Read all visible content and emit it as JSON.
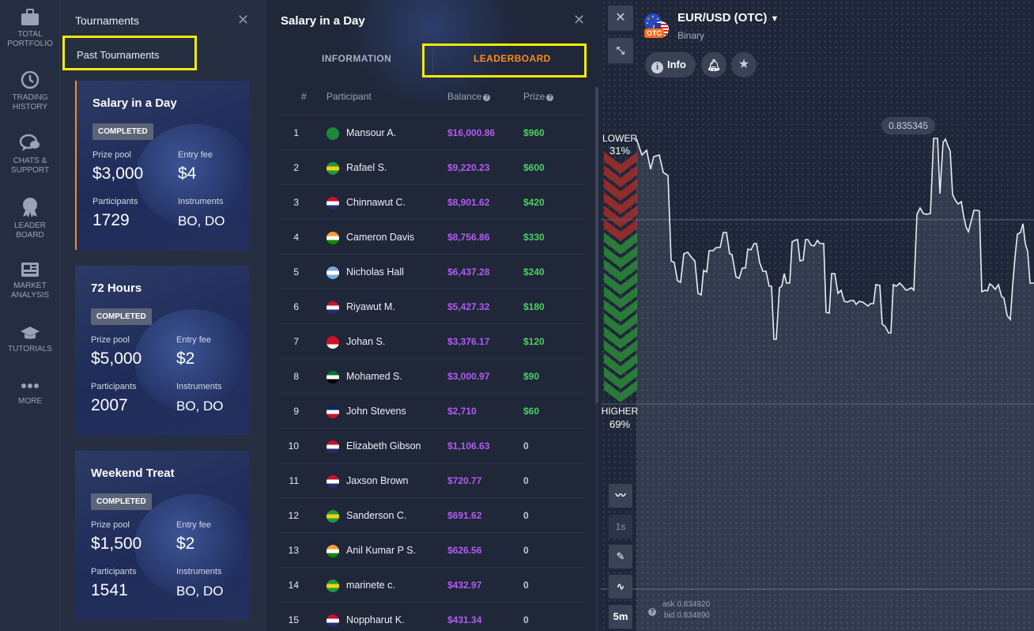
{
  "nav": {
    "items": [
      {
        "label": "TOTAL\nPORTFOLIO",
        "icon": "briefcase-icon"
      },
      {
        "label": "TRADING\nHISTORY",
        "icon": "history-icon"
      },
      {
        "label": "CHATS &\nSUPPORT",
        "icon": "chat-icon"
      },
      {
        "label": "LEADER\nBOARD",
        "icon": "award-icon"
      },
      {
        "label": "MARKET\nANALYSIS",
        "icon": "newspaper-icon"
      },
      {
        "label": "TUTORIALS",
        "icon": "graduation-cap-icon"
      },
      {
        "label": "MORE",
        "icon": "more-dots-icon"
      }
    ]
  },
  "tournaments": {
    "title": "Tournaments",
    "past_label": "Past Tournaments",
    "cards": [
      {
        "title": "Salary in a Day",
        "status": "COMPLETED",
        "prize_label": "Prize pool",
        "prize": "$3,000",
        "fee_label": "Entry fee",
        "fee": "$4",
        "participants_label": "Participants",
        "participants": "1729",
        "instruments_label": "Instruments",
        "instruments": "BO, DO"
      },
      {
        "title": "72 Hours",
        "status": "COMPLETED",
        "prize_label": "Prize pool",
        "prize": "$5,000",
        "fee_label": "Entry fee",
        "fee": "$2",
        "participants_label": "Participants",
        "participants": "2007",
        "instruments_label": "Instruments",
        "instruments": "BO, DO"
      },
      {
        "title": "Weekend Treat",
        "status": "COMPLETED",
        "prize_label": "Prize pool",
        "prize": "$1,500",
        "fee_label": "Entry fee",
        "fee": "$2",
        "participants_label": "Participants",
        "participants": "1541",
        "instruments_label": "Instruments",
        "instruments": "BO, DO"
      }
    ]
  },
  "leaderboard": {
    "title": "Salary in a Day",
    "tabs": {
      "info": "INFORMATION",
      "leaderboard": "LEADERBOARD"
    },
    "headers": {
      "rank": "#",
      "participant": "Participant",
      "balance": "Balance",
      "prize": "Prize"
    },
    "rows": [
      {
        "rank": "1",
        "name": "Mansour A.",
        "balance": "$16,000.86",
        "prize": "$960",
        "flag": "sa"
      },
      {
        "rank": "2",
        "name": "Rafael S.",
        "balance": "$9,220.23",
        "prize": "$600",
        "flag": "br"
      },
      {
        "rank": "3",
        "name": "Chinnawut C.",
        "balance": "$8,901.62",
        "prize": "$420",
        "flag": "th"
      },
      {
        "rank": "4",
        "name": "Cameron Davis",
        "balance": "$8,756.86",
        "prize": "$330",
        "flag": "in"
      },
      {
        "rank": "5",
        "name": "Nicholas Hall",
        "balance": "$6,437.28",
        "prize": "$240",
        "flag": "ar"
      },
      {
        "rank": "6",
        "name": "Riyawut M.",
        "balance": "$5,427.32",
        "prize": "$180",
        "flag": "th"
      },
      {
        "rank": "7",
        "name": "Johan S.",
        "balance": "$3,376.17",
        "prize": "$120",
        "flag": "id"
      },
      {
        "rank": "8",
        "name": "Mohamed S.",
        "balance": "$3,000.97",
        "prize": "$90",
        "flag": "ae"
      },
      {
        "rank": "9",
        "name": "John Stevens",
        "balance": "$2,710",
        "prize": "$60",
        "flag": "do"
      },
      {
        "rank": "10",
        "name": "Elizabeth Gibson",
        "balance": "$1,106.63",
        "prize": "0",
        "flag": "th"
      },
      {
        "rank": "11",
        "name": "Jaxson Brown",
        "balance": "$720.77",
        "prize": "0",
        "flag": "th"
      },
      {
        "rank": "12",
        "name": "Sanderson C.",
        "balance": "$691.62",
        "prize": "0",
        "flag": "br"
      },
      {
        "rank": "13",
        "name": "Anil Kumar P S.",
        "balance": "$626.56",
        "prize": "0",
        "flag": "in"
      },
      {
        "rank": "14",
        "name": "marinete c.",
        "balance": "$432.97",
        "prize": "0",
        "flag": "br"
      },
      {
        "rank": "15",
        "name": "Noppharut K.",
        "balance": "$431.34",
        "prize": "0",
        "flag": "th"
      }
    ]
  },
  "chart": {
    "asset": "EUR/USD (OTC)",
    "type": "Binary",
    "otc_badge": "OTC",
    "info_label": "Info",
    "price_label": "0.835345",
    "lower_label": "LOWER",
    "lower_pct": "31%",
    "higher_label": "HIGHER",
    "higher_pct": "69%",
    "timeframe_1": "1s",
    "timeframe_2": "5m",
    "ask": "ask 0.834920",
    "bid": "bid 0.834890",
    "colors": {
      "lower": "#8f2c2c",
      "higher": "#2a7a3a",
      "balance": "#b35cf2",
      "prize": "#4cd264",
      "accent": "#ff8a1e",
      "highlight": "#f8ea06"
    }
  }
}
